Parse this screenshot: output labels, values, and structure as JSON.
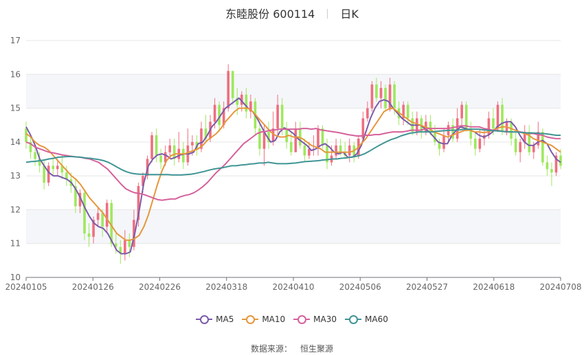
{
  "header": {
    "name": "东睦股份 600114",
    "period": "日K"
  },
  "source": {
    "label": "数据来源：",
    "value": "恒生聚源"
  },
  "colors": {
    "up": "#ef6e80",
    "down": "#9ee85d",
    "MA5": "#7b5ba8",
    "MA10": "#e6963c",
    "MA30": "#d6619a",
    "MA60": "#3f9494",
    "grid": "#e6e6e6",
    "band": "#f5f6fa"
  },
  "chart_data": {
    "type": "candlestick",
    "ylim": [
      10,
      17
    ],
    "yticks": [
      "10",
      "11",
      "12",
      "13",
      "14",
      "15",
      "16",
      "17"
    ],
    "xticks": [
      "20240105",
      "20240126",
      "20240226",
      "20240318",
      "20240410",
      "20240506",
      "20240527",
      "20240618",
      "20240708"
    ],
    "legend": [
      "MA5",
      "MA10",
      "MA30",
      "MA60"
    ],
    "legend_position": "bottom",
    "ma": {
      "MA5": [
        14.45,
        14.2,
        13.9,
        13.5,
        13.3,
        13.1,
        13.0,
        13.0,
        12.95,
        12.9,
        12.8,
        12.6,
        12.35,
        12.05,
        11.8,
        11.6,
        11.5,
        11.45,
        11.3,
        11.05,
        10.8,
        10.7,
        10.7,
        10.75,
        11.3,
        12.0,
        12.8,
        13.3,
        13.5,
        13.62,
        13.65,
        13.6,
        13.5,
        13.55,
        13.62,
        13.65,
        13.65,
        13.7,
        13.95,
        14.0,
        14.2,
        14.45,
        14.6,
        14.8,
        15.0,
        15.1,
        15.2,
        15.3,
        15.15,
        15.0,
        14.9,
        14.7,
        14.45,
        14.2,
        14.0,
        14.05,
        14.3,
        14.42,
        14.35,
        14.25,
        14.1,
        14.0,
        13.9,
        13.75,
        13.8,
        13.9,
        13.95,
        13.85,
        13.7,
        13.65,
        13.7,
        13.55,
        13.55,
        13.65,
        13.9,
        14.3,
        14.7,
        15.0,
        15.2,
        15.25,
        15.2,
        15.0,
        14.85,
        14.7,
        14.6,
        14.5,
        14.5,
        14.5,
        14.4,
        14.3,
        14.15,
        14.0,
        13.95,
        13.95,
        14.2,
        14.35,
        14.45,
        14.4,
        14.35,
        14.3,
        14.2,
        14.15,
        14.2,
        14.3,
        14.45,
        14.55,
        14.6,
        14.6,
        14.45,
        14.2,
        14.0,
        13.9,
        13.9,
        14.0,
        14.05,
        13.95,
        13.7,
        13.5,
        13.4
      ],
      "MA10": [
        14.25,
        14.15,
        14.0,
        13.9,
        13.85,
        13.75,
        13.6,
        13.45,
        13.3,
        13.15,
        13.0,
        12.9,
        12.75,
        12.55,
        12.35,
        12.2,
        12.05,
        11.9,
        11.7,
        11.5,
        11.3,
        11.2,
        11.1,
        11.1,
        11.15,
        11.25,
        11.5,
        11.85,
        12.3,
        12.75,
        13.15,
        13.45,
        13.6,
        13.65,
        13.65,
        13.65,
        13.7,
        13.75,
        13.8,
        13.9,
        14.05,
        14.15,
        14.25,
        14.4,
        14.6,
        14.75,
        14.9,
        15.0,
        15.0,
        15.0,
        14.9,
        14.75,
        14.6,
        14.45,
        14.3,
        14.2,
        14.15,
        14.15,
        14.2,
        14.15,
        14.15,
        14.1,
        14.0,
        13.9,
        13.85,
        13.8,
        13.7,
        13.7,
        13.7,
        13.7,
        13.7,
        13.7,
        13.72,
        13.8,
        13.95,
        14.1,
        14.3,
        14.5,
        14.7,
        14.9,
        14.97,
        15.0,
        14.9,
        14.8,
        14.7,
        14.6,
        14.55,
        14.5,
        14.45,
        14.4,
        14.3,
        14.25,
        14.2,
        14.15,
        14.2,
        14.25,
        14.3,
        14.35,
        14.35,
        14.3,
        14.3,
        14.28,
        14.3,
        14.35,
        14.4,
        14.45,
        14.45,
        14.4,
        14.35,
        14.3,
        14.25,
        14.2,
        14.1,
        14.05,
        14.0,
        13.95,
        13.9,
        13.8,
        13.7
      ],
      "MA30": [
        14.0,
        13.95,
        13.85,
        13.8,
        13.75,
        13.7,
        13.68,
        13.65,
        13.62,
        13.6,
        13.58,
        13.56,
        13.55,
        13.52,
        13.5,
        13.45,
        13.4,
        13.3,
        13.2,
        13.05,
        12.9,
        12.75,
        12.62,
        12.55,
        12.5,
        12.48,
        12.45,
        12.4,
        12.35,
        12.3,
        12.28,
        12.3,
        12.32,
        12.32,
        12.38,
        12.42,
        12.45,
        12.5,
        12.58,
        12.68,
        12.8,
        12.95,
        13.1,
        13.22,
        13.35,
        13.5,
        13.65,
        13.8,
        13.95,
        14.05,
        14.15,
        14.25,
        14.3,
        14.32,
        14.35,
        14.36,
        14.38,
        14.38,
        14.38,
        14.38,
        14.38,
        14.4,
        14.4,
        14.38,
        14.4,
        14.36,
        14.34,
        14.32,
        14.3,
        14.28,
        14.25,
        14.22,
        14.2,
        14.18,
        14.18,
        14.2,
        14.2,
        14.22,
        14.22,
        14.25,
        14.28,
        14.3,
        14.3,
        14.3,
        14.32,
        14.35,
        14.35,
        14.35,
        14.38,
        14.4,
        14.4,
        14.4,
        14.4,
        14.4,
        14.42,
        14.45,
        14.48,
        14.48,
        14.45,
        14.45,
        14.45,
        14.4,
        14.38,
        14.35,
        14.35,
        14.32,
        14.3,
        14.3,
        14.3,
        14.3,
        14.28,
        14.25,
        14.25,
        14.22,
        14.2,
        14.15,
        14.12,
        14.1,
        14.1
      ],
      "MA60": [
        13.4,
        13.42,
        13.43,
        13.45,
        13.47,
        13.5,
        13.52,
        13.55,
        13.56,
        13.57,
        13.57,
        13.56,
        13.55,
        13.53,
        13.52,
        13.5,
        13.48,
        13.45,
        13.4,
        13.33,
        13.25,
        13.18,
        13.12,
        13.08,
        13.06,
        13.05,
        13.05,
        13.04,
        13.04,
        13.04,
        13.04,
        13.04,
        13.03,
        13.03,
        13.03,
        13.04,
        13.05,
        13.07,
        13.1,
        13.13,
        13.17,
        13.2,
        13.22,
        13.24,
        13.27,
        13.3,
        13.3,
        13.32,
        13.33,
        13.35,
        13.36,
        13.38,
        13.38,
        13.4,
        13.38,
        13.36,
        13.36,
        13.36,
        13.37,
        13.38,
        13.4,
        13.42,
        13.43,
        13.44,
        13.45,
        13.47,
        13.48,
        13.5,
        13.5,
        13.52,
        13.53,
        13.55,
        13.57,
        13.6,
        13.65,
        13.72,
        13.8,
        13.88,
        13.95,
        14.02,
        14.08,
        14.12,
        14.18,
        14.22,
        14.26,
        14.28,
        14.3,
        14.3,
        14.3,
        14.3,
        14.32,
        14.33,
        14.34,
        14.35,
        14.35,
        14.36,
        14.38,
        14.38,
        14.38,
        14.38,
        14.36,
        14.35,
        14.34,
        14.33,
        14.32,
        14.31,
        14.3,
        14.3,
        14.29,
        14.28,
        14.27,
        14.27,
        14.26,
        14.25,
        14.24,
        14.22,
        14.2,
        14.2
      ]
    },
    "candles": [
      [
        14.4,
        14.0,
        14.6,
        13.8
      ],
      [
        14.0,
        13.7,
        14.2,
        13.5
      ],
      [
        13.7,
        13.5,
        13.9,
        13.3
      ],
      [
        13.5,
        13.3,
        13.7,
        13.1
      ],
      [
        13.3,
        12.8,
        13.5,
        12.6
      ],
      [
        12.8,
        13.3,
        13.4,
        12.7
      ],
      [
        13.3,
        13.2,
        13.5,
        13.0
      ],
      [
        13.2,
        13.3,
        13.5,
        13.0
      ],
      [
        13.3,
        13.1,
        13.6,
        12.9
      ],
      [
        13.1,
        12.9,
        13.3,
        12.7
      ],
      [
        12.9,
        12.7,
        13.1,
        12.5
      ],
      [
        12.7,
        12.1,
        12.9,
        11.9
      ],
      [
        12.1,
        12.5,
        12.6,
        11.9
      ],
      [
        12.5,
        11.3,
        12.6,
        11.1
      ],
      [
        11.3,
        11.2,
        11.6,
        10.9
      ],
      [
        11.2,
        11.7,
        11.8,
        11.0
      ],
      [
        11.7,
        11.9,
        12.1,
        11.5
      ],
      [
        11.9,
        11.5,
        12.0,
        11.2
      ],
      [
        11.5,
        12.2,
        12.3,
        11.3
      ],
      [
        12.2,
        11.0,
        12.3,
        10.9
      ],
      [
        11.0,
        10.9,
        11.3,
        10.7
      ],
      [
        10.9,
        10.7,
        11.1,
        10.4
      ],
      [
        10.7,
        11.1,
        11.4,
        10.5
      ],
      [
        11.1,
        10.9,
        11.3,
        10.6
      ],
      [
        10.9,
        11.7,
        12.0,
        10.8
      ],
      [
        11.7,
        12.7,
        12.8,
        11.5
      ],
      [
        12.7,
        13.0,
        13.1,
        12.5
      ],
      [
        13.0,
        13.5,
        13.6,
        12.9
      ],
      [
        13.5,
        14.2,
        14.3,
        13.4
      ],
      [
        14.2,
        13.6,
        14.4,
        13.4
      ],
      [
        13.6,
        13.4,
        13.8,
        13.2
      ],
      [
        13.4,
        13.7,
        13.9,
        13.3
      ],
      [
        13.7,
        13.9,
        14.1,
        13.5
      ],
      [
        13.9,
        13.5,
        14.1,
        13.3
      ],
      [
        13.5,
        13.8,
        14.3,
        13.4
      ],
      [
        13.8,
        13.4,
        14.0,
        13.2
      ],
      [
        13.4,
        13.9,
        14.4,
        13.3
      ],
      [
        13.9,
        14.0,
        14.2,
        13.6
      ],
      [
        14.0,
        13.8,
        14.2,
        13.6
      ],
      [
        13.8,
        14.4,
        14.6,
        13.7
      ],
      [
        14.4,
        14.1,
        14.8,
        14.0
      ],
      [
        14.1,
        14.6,
        14.8,
        14.0
      ],
      [
        14.6,
        15.1,
        15.3,
        14.4
      ],
      [
        15.1,
        14.5,
        15.2,
        14.3
      ],
      [
        14.5,
        15.0,
        15.2,
        14.4
      ],
      [
        15.0,
        16.1,
        16.3,
        14.9
      ],
      [
        16.1,
        15.3,
        16.1,
        15.1
      ],
      [
        15.3,
        15.1,
        15.6,
        14.8
      ],
      [
        15.1,
        15.4,
        15.5,
        14.9
      ],
      [
        15.4,
        14.9,
        15.6,
        14.7
      ],
      [
        14.9,
        15.2,
        15.4,
        14.7
      ],
      [
        15.2,
        14.4,
        15.3,
        14.2
      ],
      [
        14.4,
        13.8,
        14.6,
        13.6
      ],
      [
        13.8,
        14.3,
        14.5,
        13.3
      ],
      [
        14.3,
        14.0,
        14.6,
        13.8
      ],
      [
        14.0,
        14.4,
        14.9,
        13.9
      ],
      [
        14.4,
        15.1,
        15.4,
        14.2
      ],
      [
        15.1,
        14.4,
        15.3,
        14.2
      ],
      [
        14.4,
        14.0,
        14.6,
        13.8
      ],
      [
        14.0,
        13.7,
        14.3,
        13.6
      ],
      [
        13.7,
        14.4,
        14.6,
        13.7
      ],
      [
        14.4,
        13.9,
        14.6,
        13.8
      ],
      [
        13.9,
        13.6,
        14.1,
        13.4
      ],
      [
        13.6,
        13.8,
        14.0,
        13.5
      ],
      [
        13.8,
        13.8,
        14.2,
        13.6
      ],
      [
        13.8,
        14.4,
        14.5,
        13.6
      ],
      [
        14.4,
        13.9,
        14.5,
        13.8
      ],
      [
        13.9,
        13.4,
        14.1,
        13.2
      ],
      [
        13.4,
        13.6,
        13.9,
        13.3
      ],
      [
        13.6,
        13.9,
        14.1,
        13.5
      ],
      [
        13.9,
        13.7,
        14.1,
        13.6
      ],
      [
        13.7,
        13.6,
        14.0,
        13.5
      ],
      [
        13.6,
        13.9,
        14.1,
        13.4
      ],
      [
        13.9,
        13.6,
        14.0,
        13.4
      ],
      [
        13.6,
        14.1,
        14.2,
        13.5
      ],
      [
        14.1,
        14.7,
        14.9,
        14.0
      ],
      [
        14.7,
        15.0,
        15.2,
        14.6
      ],
      [
        15.0,
        15.7,
        15.8,
        14.9
      ],
      [
        15.7,
        15.3,
        15.9,
        15.2
      ],
      [
        15.3,
        15.6,
        15.8,
        15.0
      ],
      [
        15.6,
        15.0,
        15.7,
        14.9
      ],
      [
        15.0,
        15.7,
        15.9,
        14.9
      ],
      [
        15.7,
        15.0,
        15.8,
        14.8
      ],
      [
        15.0,
        14.7,
        15.2,
        14.5
      ],
      [
        14.7,
        15.1,
        15.2,
        14.5
      ],
      [
        15.1,
        14.7,
        15.2,
        14.5
      ],
      [
        14.7,
        14.3,
        14.9,
        14.2
      ],
      [
        14.3,
        14.7,
        14.9,
        14.2
      ],
      [
        14.7,
        14.3,
        14.8,
        14.1
      ],
      [
        14.3,
        14.6,
        14.8,
        14.2
      ],
      [
        14.6,
        14.3,
        14.8,
        14.2
      ],
      [
        14.3,
        14.0,
        14.5,
        13.9
      ],
      [
        14.0,
        13.8,
        14.1,
        13.6
      ],
      [
        13.8,
        14.2,
        14.4,
        13.7
      ],
      [
        14.2,
        14.5,
        14.6,
        14.0
      ],
      [
        14.5,
        14.1,
        14.7,
        14.0
      ],
      [
        14.1,
        14.7,
        15.0,
        14.0
      ],
      [
        14.7,
        15.1,
        15.2,
        14.4
      ],
      [
        15.1,
        14.4,
        15.2,
        14.3
      ],
      [
        14.4,
        14.1,
        14.6,
        13.9
      ],
      [
        14.1,
        13.8,
        14.3,
        13.6
      ],
      [
        13.8,
        14.1,
        14.4,
        13.7
      ],
      [
        14.1,
        14.2,
        14.4,
        13.9
      ],
      [
        14.2,
        14.7,
        14.9,
        14.1
      ],
      [
        14.7,
        14.4,
        15.0,
        14.2
      ],
      [
        14.4,
        15.1,
        15.2,
        14.3
      ],
      [
        15.1,
        14.3,
        15.3,
        14.2
      ],
      [
        14.3,
        14.6,
        14.7,
        14.2
      ],
      [
        14.6,
        14.1,
        14.7,
        13.9
      ],
      [
        14.1,
        13.7,
        14.3,
        13.6
      ],
      [
        13.7,
        14.0,
        14.1,
        13.4
      ],
      [
        14.0,
        14.3,
        14.5,
        13.8
      ],
      [
        14.3,
        13.7,
        14.5,
        13.6
      ],
      [
        13.7,
        13.9,
        14.0,
        13.5
      ],
      [
        13.9,
        14.3,
        14.6,
        13.8
      ],
      [
        14.3,
        13.4,
        14.4,
        13.3
      ],
      [
        13.4,
        13.2,
        13.6,
        13.0
      ],
      [
        13.2,
        13.1,
        13.4,
        12.7
      ],
      [
        13.1,
        13.6,
        13.7,
        13.0
      ],
      [
        13.6,
        13.3,
        13.8,
        13.2
      ]
    ]
  }
}
